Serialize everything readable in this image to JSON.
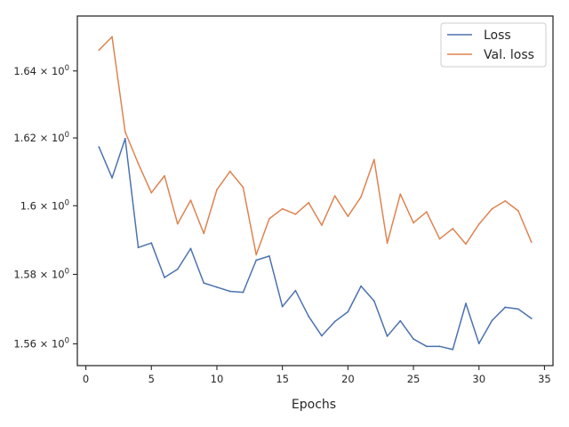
{
  "chart_data": {
    "type": "line",
    "title": "",
    "xlabel": "Epochs",
    "ylabel": "",
    "yscale": "log",
    "xlim": [
      -0.65,
      35.65
    ],
    "ylim": [
      1.5538,
      1.6566
    ],
    "grid": false,
    "legend_position": "top-right",
    "x_ticks": [
      {
        "value": 0,
        "label": "0"
      },
      {
        "value": 5,
        "label": "5"
      },
      {
        "value": 10,
        "label": "10"
      },
      {
        "value": 15,
        "label": "15"
      },
      {
        "value": 20,
        "label": "20"
      },
      {
        "value": 25,
        "label": "25"
      },
      {
        "value": 30,
        "label": "30"
      },
      {
        "value": 35,
        "label": "35"
      }
    ],
    "y_ticks": [
      {
        "value": 1.56,
        "mantissa": "1.56"
      },
      {
        "value": 1.58,
        "mantissa": "1.58"
      },
      {
        "value": 1.6,
        "mantissa": "1.6"
      },
      {
        "value": 1.62,
        "mantissa": "1.62"
      },
      {
        "value": 1.64,
        "mantissa": "1.64"
      }
    ],
    "y_tick_suffix": "× 10",
    "y_tick_exponent": "0",
    "x": [
      1,
      2,
      3,
      4,
      5,
      6,
      7,
      8,
      9,
      10,
      11,
      12,
      13,
      14,
      15,
      16,
      17,
      18,
      19,
      20,
      21,
      22,
      23,
      24,
      25,
      26,
      27,
      28,
      29,
      30,
      31,
      32,
      33,
      34
    ],
    "series": [
      {
        "name": "Loss",
        "color": "#4c72b0",
        "values": [
          1.6173,
          1.6082,
          1.6198,
          1.5878,
          1.5891,
          1.5791,
          1.5815,
          1.5875,
          1.5775,
          1.5763,
          1.5751,
          1.5748,
          1.5841,
          1.5853,
          1.5707,
          1.5753,
          1.5679,
          1.5623,
          1.5664,
          1.5692,
          1.5766,
          1.5723,
          1.5622,
          1.5666,
          1.5614,
          1.5593,
          1.5593,
          1.5584,
          1.5716,
          1.5601,
          1.5667,
          1.5705,
          1.57,
          1.5673
        ]
      },
      {
        "name": "Val. loss",
        "color": "#dd8452",
        "values": [
          1.6463,
          1.6503,
          1.6218,
          1.6124,
          1.6038,
          1.6088,
          1.5947,
          1.6016,
          1.5919,
          1.6047,
          1.6101,
          1.6054,
          1.5857,
          1.5962,
          1.5991,
          1.5975,
          1.6009,
          1.5943,
          1.6029,
          1.5969,
          1.6026,
          1.6136,
          1.5891,
          1.6034,
          1.595,
          1.5982,
          1.5903,
          1.5933,
          1.5888,
          1.5946,
          1.5991,
          1.6014,
          1.5985,
          1.5894
        ]
      }
    ]
  }
}
